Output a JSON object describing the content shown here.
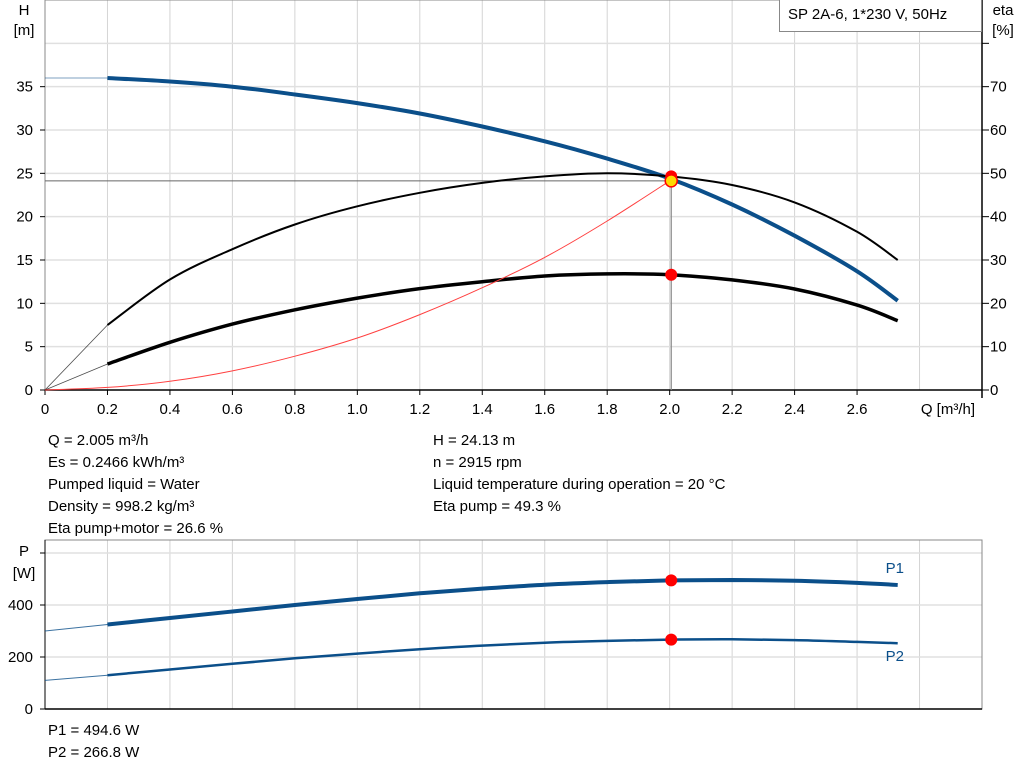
{
  "chart_data": [
    {
      "type": "line",
      "title": "SP 2A-6, 1*230 V, 50Hz",
      "xlabel": "Q [m³/h]",
      "ylabel_left": [
        "H",
        "[m]"
      ],
      "ylabel_right": [
        "eta",
        "[%]"
      ],
      "xlim": [
        0,
        3.0
      ],
      "ylim_left": [
        0,
        45
      ],
      "ylim_right": [
        0,
        90
      ],
      "x_ticks": [
        "0",
        "0.2",
        "0.4",
        "0.6",
        "0.8",
        "1.0",
        "1.2",
        "1.4",
        "1.6",
        "1.8",
        "2.0",
        "2.2",
        "2.4",
        "2.6"
      ],
      "y_ticks_left": [
        "0",
        "5",
        "10",
        "15",
        "20",
        "25",
        "30",
        "35"
      ],
      "y_ticks_right": [
        "0",
        "10",
        "20",
        "30",
        "40",
        "50",
        "60",
        "70"
      ],
      "grid": true,
      "x": [
        0,
        0.2,
        0.4,
        0.6,
        0.8,
        1.0,
        1.2,
        1.4,
        1.6,
        1.8,
        2.0,
        2.2,
        2.4,
        2.6,
        2.73
      ],
      "series": [
        {
          "id": "H",
          "axis": "left",
          "color": "#0b4f8a",
          "values": [
            36,
            36,
            35.6,
            35,
            34.1,
            33.1,
            31.9,
            30.4,
            28.7,
            26.7,
            24.4,
            21.4,
            17.8,
            13.7,
            10.3
          ]
        },
        {
          "id": "eta_pump",
          "axis": "right",
          "color": "#000000",
          "values": [
            0,
            15,
            25.5,
            32.5,
            38.2,
            42.4,
            45.5,
            47.8,
            49.3,
            50,
            49.3,
            47.3,
            43.3,
            36.5,
            30
          ]
        },
        {
          "id": "eta_pump_motor",
          "axis": "right",
          "color": "#000000",
          "values": [
            0,
            6,
            11,
            15.2,
            18.5,
            21.2,
            23.4,
            25,
            26.3,
            26.8,
            26.6,
            25.4,
            23.3,
            19.6,
            16
          ]
        },
        {
          "id": "system",
          "axis": "left",
          "color": "#ff4040",
          "x": [
            0,
            0.2,
            0.4,
            0.6,
            0.8,
            1.0,
            1.2,
            1.4,
            1.6,
            1.8,
            2.0
          ],
          "values": [
            0,
            0.3,
            1,
            2.2,
            3.9,
            6,
            8.7,
            11.8,
            15.3,
            19.5,
            24.13
          ]
        }
      ],
      "operating_point": {
        "Q": 2.005,
        "H": 24.13,
        "eta_pump": 49.3,
        "eta_pump_motor": 26.6
      }
    },
    {
      "type": "line",
      "ylabel": [
        "P",
        "[W]"
      ],
      "xlim": [
        0,
        3.0
      ],
      "ylim": [
        0,
        650
      ],
      "y_ticks": [
        "0",
        "200",
        "400"
      ],
      "grid": true,
      "x": [
        0,
        0.2,
        0.4,
        0.6,
        0.8,
        1.0,
        1.2,
        1.4,
        1.6,
        1.8,
        2.0,
        2.2,
        2.4,
        2.6,
        2.73
      ],
      "series": [
        {
          "name": "P1",
          "color": "#0b4f8a",
          "values": [
            300,
            325,
            350,
            375,
            400,
            423,
            445,
            463,
            478,
            488,
            494.6,
            496,
            493,
            485,
            477
          ]
        },
        {
          "name": "P2",
          "color": "#0b4f8a",
          "values": [
            110,
            130,
            152,
            174,
            195,
            213,
            230,
            244,
            255,
            262,
            266.8,
            268,
            265,
            258,
            253
          ]
        }
      ],
      "operating_point": {
        "Q": 2.005,
        "P1": 494.6,
        "P2": 266.8
      }
    }
  ],
  "info": {
    "left": [
      "Q = 2.005 m³/h",
      "Es = 0.2466 kWh/m³",
      "Pumped liquid = Water",
      "Density = 998.2 kg/m³",
      "Eta pump+motor = 26.6 %"
    ],
    "right": [
      "H = 24.13 m",
      "n = 2915 rpm",
      "Liquid temperature during operation = 20 °C",
      "Eta pump = 49.3 %"
    ],
    "power": [
      "P1 = 494.6 W",
      "P2 = 266.8 W"
    ]
  }
}
